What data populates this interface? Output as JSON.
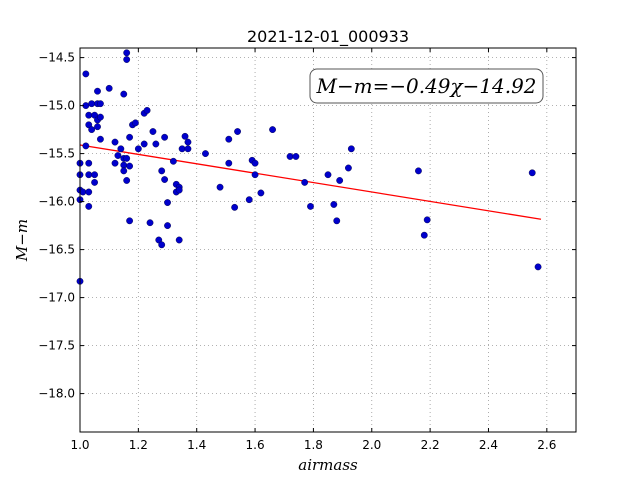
{
  "chart_data": {
    "type": "scatter",
    "title": "2021-12-01_000933",
    "xlabel": "airmass",
    "ylabel": "M−m",
    "xlim": [
      1.0,
      2.7
    ],
    "ylim": [
      -18.4,
      -14.4
    ],
    "y_inverted": true,
    "grid": true,
    "x_ticks": [
      1.0,
      1.2,
      1.4,
      1.6,
      1.8,
      2.0,
      2.2,
      2.4,
      2.6
    ],
    "x_tick_labels": [
      "1.0",
      "1.2",
      "1.4",
      "1.6",
      "1.8",
      "2.0",
      "2.2",
      "2.4",
      "2.6"
    ],
    "y_ticks": [
      -14.5,
      -15.0,
      -15.5,
      -16.0,
      -16.5,
      -17.0,
      -17.5,
      -18.0
    ],
    "y_tick_labels": [
      "−14.5",
      "−15.0",
      "−15.5",
      "−16.0",
      "−16.5",
      "−17.0",
      "−17.5",
      "−18.0"
    ],
    "annotation": "M−m=−0.49χ−14.92",
    "fit": {
      "slope": -0.49,
      "intercept": -14.92,
      "x_range": [
        1.0,
        2.58
      ],
      "color": "#ff0000"
    },
    "point_color": "#0000cc",
    "points": [
      [
        1.0,
        -16.83
      ],
      [
        1.0,
        -15.6
      ],
      [
        1.0,
        -15.72
      ],
      [
        1.0,
        -15.88
      ],
      [
        1.0,
        -15.98
      ],
      [
        1.01,
        -15.9
      ],
      [
        1.02,
        -14.67
      ],
      [
        1.02,
        -15.0
      ],
      [
        1.02,
        -15.42
      ],
      [
        1.03,
        -15.6
      ],
      [
        1.03,
        -15.72
      ],
      [
        1.03,
        -15.9
      ],
      [
        1.03,
        -16.05
      ],
      [
        1.03,
        -15.1
      ],
      [
        1.03,
        -15.2
      ],
      [
        1.04,
        -15.25
      ],
      [
        1.04,
        -14.98
      ],
      [
        1.05,
        -15.1
      ],
      [
        1.05,
        -15.8
      ],
      [
        1.05,
        -15.72
      ],
      [
        1.06,
        -14.85
      ],
      [
        1.06,
        -14.98
      ],
      [
        1.06,
        -15.15
      ],
      [
        1.06,
        -15.22
      ],
      [
        1.07,
        -14.98
      ],
      [
        1.07,
        -15.35
      ],
      [
        1.07,
        -15.12
      ],
      [
        1.1,
        -14.82
      ],
      [
        1.12,
        -15.38
      ],
      [
        1.12,
        -15.6
      ],
      [
        1.13,
        -15.52
      ],
      [
        1.14,
        -15.45
      ],
      [
        1.15,
        -14.88
      ],
      [
        1.15,
        -15.55
      ],
      [
        1.15,
        -15.62
      ],
      [
        1.15,
        -15.68
      ],
      [
        1.16,
        -14.45
      ],
      [
        1.16,
        -14.52
      ],
      [
        1.16,
        -15.55
      ],
      [
        1.16,
        -15.78
      ],
      [
        1.17,
        -15.33
      ],
      [
        1.17,
        -15.63
      ],
      [
        1.17,
        -16.2
      ],
      [
        1.18,
        -15.2
      ],
      [
        1.19,
        -15.18
      ],
      [
        1.2,
        -15.45
      ],
      [
        1.22,
        -15.4
      ],
      [
        1.22,
        -15.08
      ],
      [
        1.23,
        -15.05
      ],
      [
        1.24,
        -16.22
      ],
      [
        1.25,
        -15.27
      ],
      [
        1.26,
        -15.4
      ],
      [
        1.27,
        -16.4
      ],
      [
        1.28,
        -16.45
      ],
      [
        1.28,
        -15.68
      ],
      [
        1.29,
        -15.33
      ],
      [
        1.29,
        -15.77
      ],
      [
        1.3,
        -16.25
      ],
      [
        1.3,
        -16.01
      ],
      [
        1.32,
        -15.58
      ],
      [
        1.33,
        -15.82
      ],
      [
        1.33,
        -15.9
      ],
      [
        1.34,
        -15.85
      ],
      [
        1.34,
        -15.88
      ],
      [
        1.34,
        -16.4
      ],
      [
        1.35,
        -15.45
      ],
      [
        1.36,
        -15.32
      ],
      [
        1.37,
        -15.38
      ],
      [
        1.37,
        -15.45
      ],
      [
        1.43,
        -15.5
      ],
      [
        1.48,
        -15.85
      ],
      [
        1.51,
        -15.6
      ],
      [
        1.51,
        -15.35
      ],
      [
        1.53,
        -16.06
      ],
      [
        1.54,
        -15.27
      ],
      [
        1.58,
        -15.98
      ],
      [
        1.59,
        -15.57
      ],
      [
        1.6,
        -15.6
      ],
      [
        1.6,
        -15.72
      ],
      [
        1.62,
        -15.91
      ],
      [
        1.66,
        -15.25
      ],
      [
        1.72,
        -15.53
      ],
      [
        1.74,
        -15.53
      ],
      [
        1.77,
        -15.8
      ],
      [
        1.79,
        -16.05
      ],
      [
        1.85,
        -15.72
      ],
      [
        1.87,
        -16.03
      ],
      [
        1.88,
        -16.2
      ],
      [
        1.89,
        -15.78
      ],
      [
        1.92,
        -15.65
      ],
      [
        1.93,
        -15.45
      ],
      [
        2.16,
        -15.68
      ],
      [
        2.18,
        -16.35
      ],
      [
        2.19,
        -16.19
      ],
      [
        2.55,
        -15.7
      ],
      [
        2.57,
        -16.68
      ]
    ]
  }
}
